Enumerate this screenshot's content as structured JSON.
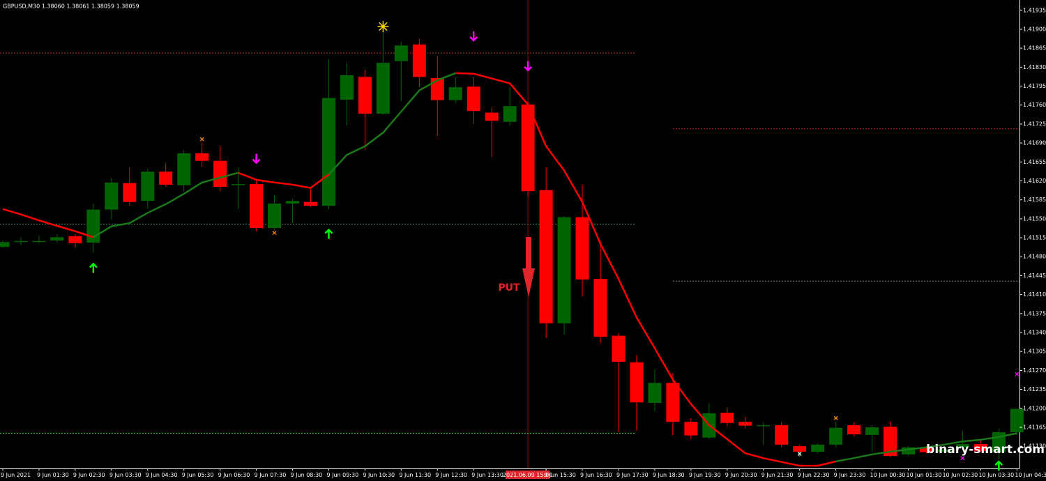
{
  "chart_data": {
    "type": "candlestick",
    "title": "GBPUSD,M30  1.38060 1.38061 1.38059 1.38059",
    "categories": [
      "9 Jun 2021",
      null,
      "9 Jun 01:30",
      null,
      "9 Jun 02:30",
      null,
      "9 Jun 03:30",
      null,
      "9 Jun 04:30",
      null,
      "9 Jun 05:30",
      null,
      "9 Jun 06:30",
      null,
      "9 Jun 07:30",
      null,
      "9 Jun 08:30",
      null,
      "9 Jun 09:30",
      null,
      "9 Jun 10:30",
      null,
      "9 Jun 11:30",
      null,
      "9 Jun 12:30",
      null,
      "9 Jun 13:30",
      null,
      null,
      "2021.06.09 15:00",
      "9 Jun 15:30",
      null,
      "9 Jun 16:30",
      null,
      "9 Jun 17:30",
      null,
      "9 Jun 18:30",
      null,
      "9 Jun 19:30",
      null,
      "9 Jun 20:30",
      null,
      "9 Jun 21:30",
      null,
      "9 Jun 22:30",
      null,
      "9 Jun 23:30",
      null,
      "10 Jun 00:30",
      null,
      "10 Jun 01:30",
      null,
      "10 Jun 02:30",
      null,
      "10 Jun 03:30",
      null,
      "10 Jun 04:3"
    ],
    "highlight_category": 29,
    "open": [
      1.41498,
      1.41509,
      1.41509,
      1.4151,
      1.41518,
      1.41506,
      1.41567,
      1.41616,
      1.41583,
      1.41637,
      1.41612,
      1.41671,
      1.41657,
      1.41614,
      1.41614,
      1.41533,
      1.41578,
      1.41581,
      1.41574,
      1.4177,
      1.41812,
      1.41744,
      1.41841,
      1.41872,
      1.4181,
      1.41769,
      1.41794,
      1.41746,
      1.41729,
      1.41761,
      1.41603,
      1.41357,
      1.41553,
      1.41439,
      1.41334,
      1.41285,
      1.4121,
      1.41247,
      1.41175,
      1.41146,
      1.41192,
      1.41175,
      1.41169,
      1.41169,
      1.4113,
      1.4112,
      1.41133,
      1.41169,
      1.41151,
      1.41166,
      1.41115,
      1.41127,
      1.4112,
      1.41128,
      1.41134,
      1.41119,
      1.41156
    ],
    "high": [
      1.4151,
      1.41516,
      1.41519,
      1.41522,
      1.41522,
      1.41578,
      1.41626,
      1.41645,
      1.41643,
      1.41652,
      1.41677,
      1.4169,
      1.41684,
      1.41645,
      1.41622,
      1.41594,
      1.41587,
      1.41607,
      1.41845,
      1.41838,
      1.41825,
      1.41896,
      1.41877,
      1.41883,
      1.41851,
      1.41812,
      1.41812,
      1.41755,
      1.41793,
      1.41767,
      1.41645,
      1.41555,
      1.41613,
      1.4151,
      1.41339,
      1.41298,
      1.41272,
      1.41265,
      1.41182,
      1.4121,
      1.41201,
      1.41184,
      1.41175,
      1.41175,
      1.41133,
      1.41136,
      1.41175,
      1.41175,
      1.41169,
      1.41175,
      1.4113,
      1.4113,
      1.4113,
      1.41159,
      1.41141,
      1.41163,
      1.41199
    ],
    "low": [
      1.41496,
      1.41501,
      1.41504,
      1.41506,
      1.41497,
      1.41488,
      1.41549,
      1.41574,
      1.41568,
      1.41609,
      1.416,
      1.41645,
      1.41601,
      1.41568,
      1.41527,
      1.41529,
      1.41542,
      1.41572,
      1.41568,
      1.41722,
      1.41677,
      1.41742,
      1.41767,
      1.41793,
      1.41703,
      1.41764,
      1.41725,
      1.41664,
      1.41722,
      1.41591,
      1.4133,
      1.41336,
      1.41407,
      1.4132,
      1.41156,
      1.41159,
      1.41195,
      1.4115,
      1.41143,
      1.41143,
      1.41166,
      1.41163,
      1.41133,
      1.41128,
      1.41111,
      1.41117,
      1.41128,
      1.41148,
      1.4112,
      1.4111,
      1.41112,
      1.41117,
      1.41117,
      1.41124,
      1.41119,
      1.41105,
      1.4115
    ],
    "close": [
      1.41507,
      1.41509,
      1.41509,
      1.41516,
      1.41505,
      1.41567,
      1.41617,
      1.41581,
      1.41637,
      1.41613,
      1.41671,
      1.41657,
      1.41609,
      1.41614,
      1.41533,
      1.41578,
      1.41583,
      1.41574,
      1.41773,
      1.41815,
      1.41744,
      1.41838,
      1.4187,
      1.41812,
      1.41769,
      1.41793,
      1.41749,
      1.41731,
      1.41758,
      1.41601,
      1.41357,
      1.41553,
      1.41438,
      1.41332,
      1.41286,
      1.41211,
      1.41247,
      1.41175,
      1.4115,
      1.41191,
      1.41173,
      1.41168,
      1.41169,
      1.41133,
      1.4112,
      1.41133,
      1.41164,
      1.41152,
      1.41165,
      1.41112,
      1.41128,
      1.41119,
      1.41124,
      1.41134,
      1.41121,
      1.41156,
      1.41199
    ],
    "up_color": "#006400",
    "down_color": "#ff0000",
    "lines": [
      {
        "color": "#ff0000",
        "values": [
          1.41568,
          1.41558,
          1.41547,
          1.41537,
          1.41527,
          1.41516,
          null,
          null,
          null,
          null,
          null,
          null,
          null,
          1.41635,
          1.41622,
          1.41617,
          1.41613,
          1.41607,
          1.41632,
          null,
          null,
          null,
          null,
          null,
          null,
          1.41819,
          1.41818,
          1.41809,
          1.418,
          1.41761,
          1.41684,
          1.41639,
          1.41581,
          1.41504,
          1.41439,
          1.41368,
          1.41311,
          1.41253,
          1.41208,
          1.41169,
          1.41143,
          1.41117,
          1.41108,
          1.41101,
          1.41094,
          1.41094,
          1.41102,
          null,
          null,
          null,
          null,
          null,
          null,
          null,
          null,
          null,
          null
        ]
      },
      {
        "color": "#1a7a1a",
        "values": [
          null,
          null,
          null,
          null,
          null,
          1.41516,
          1.41536,
          1.41542,
          1.41561,
          1.41577,
          1.41596,
          1.41617,
          1.41626,
          1.41635,
          null,
          null,
          null,
          null,
          1.41632,
          1.41668,
          1.41684,
          1.41709,
          1.41748,
          1.41787,
          1.41806,
          1.41819,
          null,
          null,
          null,
          null,
          null,
          null,
          null,
          null,
          null,
          null,
          null,
          null,
          null,
          null,
          null,
          null,
          null,
          null,
          null,
          null,
          1.41102,
          1.41108,
          1.41115,
          1.4112,
          1.41124,
          1.41128,
          1.41133,
          1.41139,
          1.41142,
          1.41147,
          1.41154
        ]
      }
    ],
    "signals": [
      {
        "x": 5,
        "value": 1.41459,
        "kind": "up",
        "color": "#00ff00"
      },
      {
        "x": 18,
        "value": 1.41522,
        "kind": "up",
        "color": "#00ff00"
      },
      {
        "x": 14,
        "value": 1.41661,
        "kind": "down",
        "color": "#ff00ff"
      },
      {
        "x": 26,
        "value": 1.41887,
        "kind": "down",
        "color": "#ff00ff"
      },
      {
        "x": 29,
        "value": 1.41832,
        "kind": "down",
        "color": "#ff00ff"
      },
      {
        "x": 21,
        "value": 1.41905,
        "kind": "star",
        "color": "#ffd700"
      },
      {
        "x": 11,
        "value": 1.41697,
        "kind": "cross",
        "color": "#ff8c00"
      },
      {
        "x": 15,
        "value": 1.41524,
        "kind": "cross",
        "color": "#ff8c00"
      },
      {
        "x": 46,
        "value": 1.41182,
        "kind": "cross",
        "color": "#ff8c00"
      },
      {
        "x": 44,
        "value": 1.41116,
        "kind": "cross",
        "color": "#ffffff"
      },
      {
        "x": 53,
        "value": 1.41108,
        "kind": "cross",
        "color": "#ff00ff"
      },
      {
        "x": 56,
        "value": 1.41263,
        "kind": "cross",
        "color": "#ff00ff"
      },
      {
        "x": 55,
        "value": 1.41094,
        "kind": "up",
        "color": "#00ff00"
      }
    ],
    "hlines": [
      {
        "value": 1.41856,
        "color": "#c0282d",
        "span": "left"
      },
      {
        "value": 1.4154,
        "color": "#2e8b57",
        "span": "left"
      },
      {
        "value": 1.41154,
        "color": "#32cd32",
        "span": "left"
      },
      {
        "value": 1.41716,
        "color": "#c0282d",
        "span": "right"
      },
      {
        "value": 1.41435,
        "color": "#6b8e6b",
        "span": "right"
      }
    ],
    "annotation": "PUT",
    "watermark": "binary-smart.com",
    "ylim": [
      1.41089,
      1.41954
    ],
    "yticks": [
      1.41935,
      {
        "value": 1.419,
        "label": "1.41900"
      },
      1.41865,
      {
        "value": 1.4183,
        "label": "1.41830"
      },
      1.41795,
      {
        "value": 1.4176,
        "label": "1.41760"
      },
      1.41725,
      {
        "value": 1.4169,
        "label": "1.41690"
      },
      1.41655,
      {
        "value": 1.4162,
        "label": "1.41620"
      },
      1.41585,
      {
        "value": 1.4155,
        "label": "1.41550"
      },
      1.41515,
      {
        "value": 1.4148,
        "label": "1.41480"
      },
      1.41445,
      {
        "value": 1.4141,
        "label": "1.41410"
      },
      1.41375,
      {
        "value": 1.4134,
        "label": "1.41340"
      },
      1.41305,
      {
        "value": 1.4127,
        "label": "1.41270"
      },
      1.41235,
      {
        "value": 1.412,
        "label": "1.41200"
      },
      1.41165,
      {
        "value": 1.4113,
        "label": "1.41130"
      }
    ]
  }
}
